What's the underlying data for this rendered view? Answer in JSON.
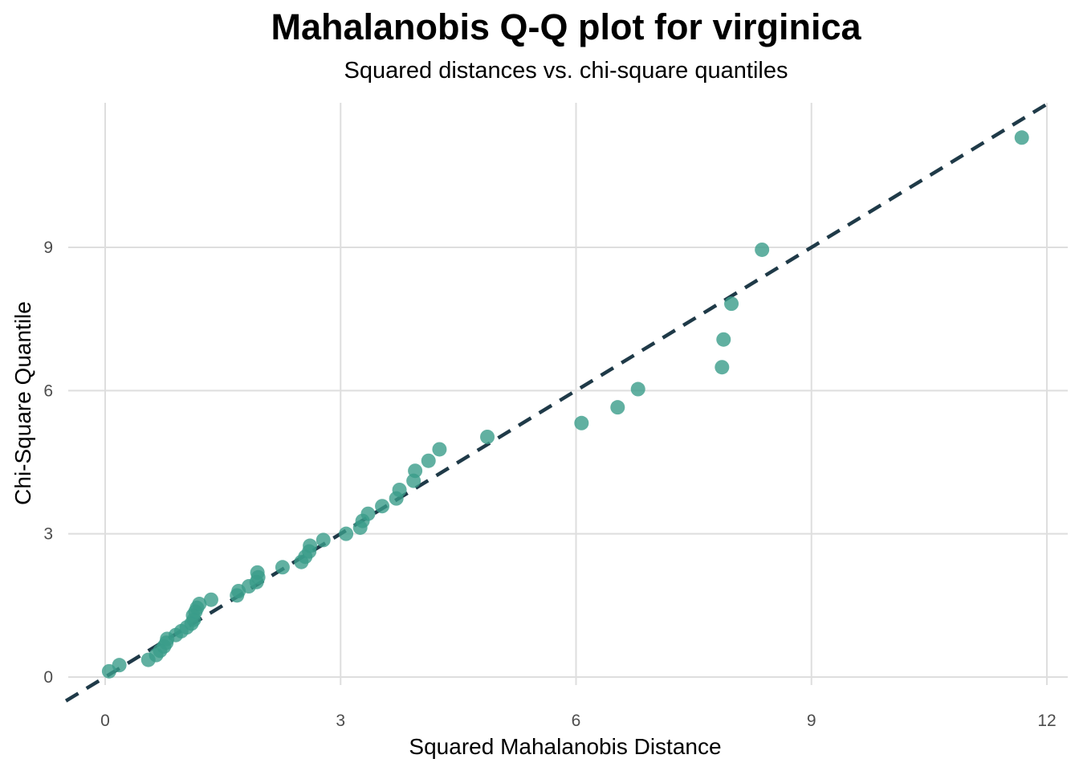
{
  "chart_data": {
    "type": "scatter",
    "title": "Mahalanobis Q-Q plot for virginica",
    "subtitle": "Squared distances vs. chi-square quantiles",
    "xlabel": "Squared Mahalanobis Distance",
    "ylabel": "Chi-Square Quantile",
    "xlim": [
      -0.5,
      12.2
    ],
    "ylim": [
      -0.25,
      12.0
    ],
    "xticks": [
      0,
      3,
      6,
      9,
      12
    ],
    "yticks": [
      0,
      3,
      6,
      9
    ],
    "grid": true,
    "legend": "none",
    "point_color": "#3a9c89",
    "line_color": "#1f3a48",
    "reference_line": {
      "slope": 1,
      "intercept": 0,
      "style": "dashed"
    },
    "points": [
      {
        "x": 0.05,
        "y": 0.12
      },
      {
        "x": 0.18,
        "y": 0.25
      },
      {
        "x": 0.55,
        "y": 0.36
      },
      {
        "x": 0.65,
        "y": 0.46
      },
      {
        "x": 0.7,
        "y": 0.55
      },
      {
        "x": 0.75,
        "y": 0.64
      },
      {
        "x": 0.78,
        "y": 0.72
      },
      {
        "x": 0.79,
        "y": 0.8
      },
      {
        "x": 0.9,
        "y": 0.88
      },
      {
        "x": 0.97,
        "y": 0.96
      },
      {
        "x": 1.04,
        "y": 1.04
      },
      {
        "x": 1.1,
        "y": 1.12
      },
      {
        "x": 1.13,
        "y": 1.2
      },
      {
        "x": 1.12,
        "y": 1.29
      },
      {
        "x": 1.15,
        "y": 1.37
      },
      {
        "x": 1.17,
        "y": 1.45
      },
      {
        "x": 1.2,
        "y": 1.53
      },
      {
        "x": 1.35,
        "y": 1.62
      },
      {
        "x": 1.68,
        "y": 1.71
      },
      {
        "x": 1.7,
        "y": 1.8
      },
      {
        "x": 1.83,
        "y": 1.9
      },
      {
        "x": 1.93,
        "y": 1.99
      },
      {
        "x": 1.95,
        "y": 2.09
      },
      {
        "x": 1.94,
        "y": 2.19
      },
      {
        "x": 2.26,
        "y": 2.3
      },
      {
        "x": 2.5,
        "y": 2.41
      },
      {
        "x": 2.55,
        "y": 2.52
      },
      {
        "x": 2.6,
        "y": 2.63
      },
      {
        "x": 2.61,
        "y": 2.75
      },
      {
        "x": 2.78,
        "y": 2.87
      },
      {
        "x": 3.07,
        "y": 3.0
      },
      {
        "x": 3.25,
        "y": 3.13
      },
      {
        "x": 3.28,
        "y": 3.27
      },
      {
        "x": 3.35,
        "y": 3.42
      },
      {
        "x": 3.53,
        "y": 3.58
      },
      {
        "x": 3.71,
        "y": 3.74
      },
      {
        "x": 3.75,
        "y": 3.92
      },
      {
        "x": 3.93,
        "y": 4.11
      },
      {
        "x": 3.95,
        "y": 4.32
      },
      {
        "x": 4.12,
        "y": 4.53
      },
      {
        "x": 4.26,
        "y": 4.77
      },
      {
        "x": 4.87,
        "y": 5.03
      },
      {
        "x": 6.07,
        "y": 5.32
      },
      {
        "x": 6.53,
        "y": 5.65
      },
      {
        "x": 6.79,
        "y": 6.03
      },
      {
        "x": 7.86,
        "y": 6.49
      },
      {
        "x": 7.88,
        "y": 7.07
      },
      {
        "x": 7.98,
        "y": 7.82
      },
      {
        "x": 8.37,
        "y": 8.95
      },
      {
        "x": 11.68,
        "y": 11.3
      }
    ]
  }
}
